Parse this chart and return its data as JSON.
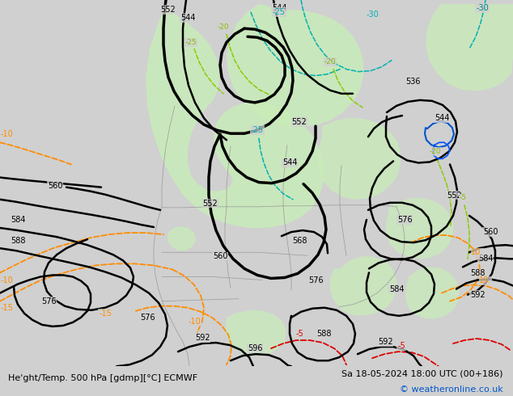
{
  "title_left": "He'ght/Temp. 500 hPa [gdmp][°C] ECMWF",
  "title_right": "Sa 18-05-2024 18:00 UTC (00+186)",
  "copyright": "© weatheronline.co.uk",
  "bg_color": "#d0d0d0",
  "green_color": "#c8edb8",
  "fig_width": 6.34,
  "fig_height": 4.9,
  "dpi": 100,
  "copyright_color": "#0055cc"
}
